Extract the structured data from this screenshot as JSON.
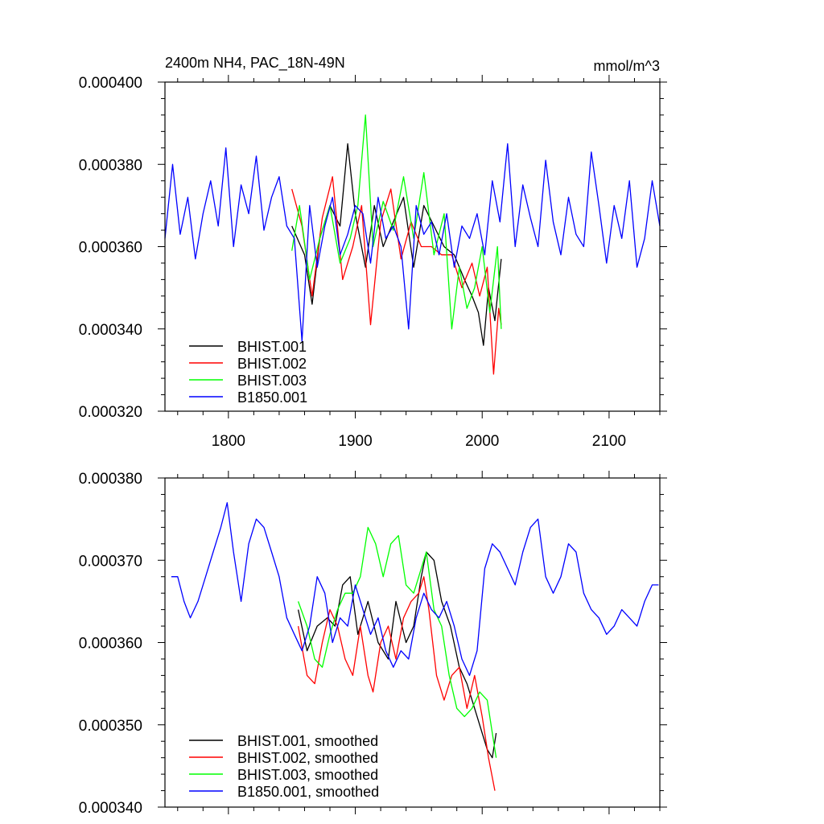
{
  "chart_data": [
    {
      "type": "line",
      "title_left": "2400m NH4, PAC_18N-49N",
      "title_right": "mmol/m^3",
      "xlim": [
        1750,
        2140
      ],
      "ylim": [
        0.00032,
        0.0004
      ],
      "xticks": [
        1800,
        1900,
        2000,
        2100
      ],
      "xtick_labels": [
        "1800",
        "1900",
        "2000",
        "2100"
      ],
      "yticks": [
        0.00032,
        0.00034,
        0.00036,
        0.00038,
        0.0004
      ],
      "ytick_labels": [
        "0.000320",
        "0.000340",
        "0.000360",
        "0.000380",
        "0.000400"
      ],
      "legend_position": "bottom-left",
      "series": [
        {
          "name": "BHIST.001",
          "color": "#000000",
          "x": [
            1850,
            1860,
            1866,
            1872,
            1880,
            1888,
            1894,
            1900,
            1908,
            1915,
            1922,
            1930,
            1938,
            1946,
            1954,
            1962,
            1970,
            1978,
            1986,
            1992,
            1997,
            2001,
            2005,
            2010,
            2015
          ],
          "values": [
            0.000365,
            0.000358,
            0.000346,
            0.000362,
            0.00037,
            0.000365,
            0.000385,
            0.000368,
            0.000355,
            0.00037,
            0.00036,
            0.000366,
            0.000372,
            0.000355,
            0.00037,
            0.000365,
            0.00036,
            0.000358,
            0.000352,
            0.000348,
            0.000344,
            0.000336,
            0.00035,
            0.000342,
            0.000357
          ]
        },
        {
          "name": "BHIST.002",
          "color": "#ff0000",
          "x": [
            1850,
            1858,
            1866,
            1874,
            1882,
            1890,
            1898,
            1905,
            1912,
            1920,
            1928,
            1936,
            1944,
            1952,
            1960,
            1968,
            1976,
            1984,
            1992,
            1998,
            2004,
            2009,
            2013,
            2015
          ],
          "values": [
            0.000374,
            0.000365,
            0.000348,
            0.000367,
            0.000377,
            0.000352,
            0.00036,
            0.00037,
            0.000341,
            0.000366,
            0.000374,
            0.000357,
            0.000366,
            0.00036,
            0.00036,
            0.000358,
            0.000358,
            0.00035,
            0.000356,
            0.000348,
            0.000355,
            0.000329,
            0.000345,
            0.000341
          ]
        },
        {
          "name": "BHIST.003",
          "color": "#00ff00",
          "x": [
            1850,
            1856,
            1864,
            1872,
            1880,
            1888,
            1896,
            1902,
            1908,
            1914,
            1922,
            1930,
            1938,
            1946,
            1954,
            1962,
            1970,
            1976,
            1982,
            1988,
            1994,
            2000,
            2006,
            2012,
            2015
          ],
          "values": [
            0.000359,
            0.00037,
            0.000352,
            0.000362,
            0.00037,
            0.000356,
            0.000362,
            0.00037,
            0.000392,
            0.00036,
            0.000371,
            0.000364,
            0.000377,
            0.000362,
            0.000378,
            0.000358,
            0.000368,
            0.00034,
            0.000355,
            0.000345,
            0.00035,
            0.00036,
            0.000344,
            0.00036,
            0.00034
          ]
        },
        {
          "name": "B1850.001",
          "color": "#0000ff",
          "x": [
            1750,
            1756,
            1762,
            1768,
            1774,
            1780,
            1786,
            1792,
            1798,
            1804,
            1810,
            1816,
            1822,
            1828,
            1834,
            1840,
            1846,
            1852,
            1858,
            1864,
            1870,
            1876,
            1882,
            1888,
            1894,
            1900,
            1906,
            1912,
            1918,
            1924,
            1930,
            1936,
            1942,
            1948,
            1954,
            1960,
            1966,
            1972,
            1978,
            1984,
            1990,
            1996,
            2002,
            2008,
            2014,
            2020,
            2026,
            2032,
            2038,
            2044,
            2050,
            2056,
            2062,
            2068,
            2074,
            2080,
            2086,
            2092,
            2098,
            2104,
            2110,
            2116,
            2122,
            2128,
            2134,
            2140
          ],
          "values": [
            0.000362,
            0.00038,
            0.000363,
            0.000372,
            0.000357,
            0.000368,
            0.000376,
            0.000365,
            0.000384,
            0.00036,
            0.000375,
            0.000368,
            0.000382,
            0.000364,
            0.000372,
            0.000377,
            0.000365,
            0.000362,
            0.000337,
            0.00037,
            0.000355,
            0.000365,
            0.000372,
            0.000358,
            0.000363,
            0.00037,
            0.000368,
            0.000356,
            0.000372,
            0.000362,
            0.000365,
            0.00036,
            0.00034,
            0.00037,
            0.000363,
            0.000366,
            0.000358,
            0.000368,
            0.000355,
            0.000365,
            0.000362,
            0.000368,
            0.000358,
            0.000376,
            0.000366,
            0.000385,
            0.00036,
            0.000375,
            0.000367,
            0.00036,
            0.000381,
            0.000366,
            0.000358,
            0.000372,
            0.000363,
            0.00036,
            0.000383,
            0.00037,
            0.000356,
            0.00037,
            0.000362,
            0.000376,
            0.000355,
            0.000362,
            0.000376,
            0.000365
          ]
        }
      ]
    },
    {
      "type": "line",
      "xlim": [
        1750,
        2140
      ],
      "ylim": [
        0.00034,
        0.00038
      ],
      "xticks": [
        1800,
        1900,
        2000,
        2100
      ],
      "yticks": [
        0.00034,
        0.00035,
        0.00036,
        0.00037,
        0.00038
      ],
      "ytick_labels": [
        "0.000340",
        "0.000350",
        "0.000360",
        "0.000370",
        "0.000380"
      ],
      "legend_position": "bottom-left",
      "series": [
        {
          "name": "BHIST.001, smoothed",
          "color": "#000000",
          "x": [
            1855,
            1862,
            1870,
            1878,
            1884,
            1890,
            1896,
            1902,
            1910,
            1918,
            1926,
            1932,
            1940,
            1946,
            1952,
            1956,
            1962,
            1968,
            1975,
            1982,
            1988,
            1994,
            2000,
            2004,
            2008,
            2011
          ],
          "values": [
            0.000364,
            0.000359,
            0.000362,
            0.000363,
            0.000362,
            0.000367,
            0.000368,
            0.000361,
            0.000365,
            0.00036,
            0.000358,
            0.000365,
            0.00036,
            0.000362,
            0.000368,
            0.000371,
            0.00037,
            0.000365,
            0.000362,
            0.000357,
            0.000355,
            0.000352,
            0.000349,
            0.000347,
            0.000346,
            0.000349
          ]
        },
        {
          "name": "BHIST.002, smoothed",
          "color": "#ff0000",
          "x": [
            1855,
            1862,
            1868,
            1874,
            1880,
            1886,
            1892,
            1898,
            1904,
            1910,
            1914,
            1920,
            1926,
            1932,
            1938,
            1944,
            1950,
            1954,
            1958,
            1964,
            1970,
            1976,
            1982,
            1988,
            1994,
            2000,
            2005,
            2010
          ],
          "values": [
            0.000362,
            0.000356,
            0.000355,
            0.00036,
            0.000364,
            0.000362,
            0.000358,
            0.000356,
            0.000362,
            0.000356,
            0.000354,
            0.00036,
            0.000362,
            0.000358,
            0.000363,
            0.000365,
            0.000366,
            0.000368,
            0.000364,
            0.000356,
            0.000353,
            0.000356,
            0.000357,
            0.000352,
            0.000356,
            0.000351,
            0.000346,
            0.000342
          ]
        },
        {
          "name": "BHIST.003, smoothed",
          "color": "#00ff00",
          "x": [
            1855,
            1862,
            1868,
            1874,
            1880,
            1886,
            1892,
            1898,
            1904,
            1910,
            1916,
            1922,
            1928,
            1934,
            1940,
            1946,
            1952,
            1956,
            1962,
            1968,
            1974,
            1980,
            1986,
            1992,
            1998,
            2004,
            2008,
            2011
          ],
          "values": [
            0.000365,
            0.000362,
            0.000358,
            0.000357,
            0.000361,
            0.000364,
            0.000366,
            0.000366,
            0.000368,
            0.000374,
            0.000372,
            0.000368,
            0.000372,
            0.000373,
            0.000367,
            0.000366,
            0.000369,
            0.000371,
            0.000364,
            0.000362,
            0.000356,
            0.000352,
            0.000351,
            0.000352,
            0.000354,
            0.000353,
            0.000349,
            0.000346
          ]
        },
        {
          "name": "B1850.001, smoothed",
          "color": "#0000ff",
          "x": [
            1755,
            1760,
            1765,
            1770,
            1776,
            1782,
            1788,
            1794,
            1799,
            1804,
            1810,
            1816,
            1822,
            1828,
            1834,
            1840,
            1846,
            1852,
            1858,
            1864,
            1870,
            1876,
            1882,
            1888,
            1894,
            1900,
            1906,
            1912,
            1918,
            1924,
            1930,
            1936,
            1942,
            1948,
            1954,
            1960,
            1966,
            1972,
            1978,
            1984,
            1990,
            1996,
            2002,
            2008,
            2014,
            2020,
            2026,
            2032,
            2038,
            2044,
            2050,
            2056,
            2062,
            2068,
            2074,
            2080,
            2086,
            2092,
            2098,
            2104,
            2110,
            2116,
            2122,
            2128,
            2134,
            2139
          ],
          "values": [
            0.000368,
            0.000368,
            0.000365,
            0.000363,
            0.000365,
            0.000368,
            0.000371,
            0.000374,
            0.000377,
            0.000371,
            0.000365,
            0.000372,
            0.000375,
            0.000374,
            0.000371,
            0.000368,
            0.000363,
            0.000361,
            0.000359,
            0.000362,
            0.000368,
            0.000366,
            0.00036,
            0.000363,
            0.000362,
            0.000367,
            0.000364,
            0.000361,
            0.000363,
            0.000359,
            0.000357,
            0.000359,
            0.000358,
            0.000363,
            0.000366,
            0.000364,
            0.000363,
            0.000365,
            0.000362,
            0.000358,
            0.000356,
            0.000359,
            0.000369,
            0.000372,
            0.000371,
            0.000369,
            0.000367,
            0.000371,
            0.000374,
            0.000375,
            0.000368,
            0.000366,
            0.000368,
            0.000372,
            0.000371,
            0.000366,
            0.000364,
            0.000363,
            0.000361,
            0.000362,
            0.000364,
            0.000363,
            0.000362,
            0.000365,
            0.000367,
            0.000367
          ]
        }
      ]
    }
  ]
}
